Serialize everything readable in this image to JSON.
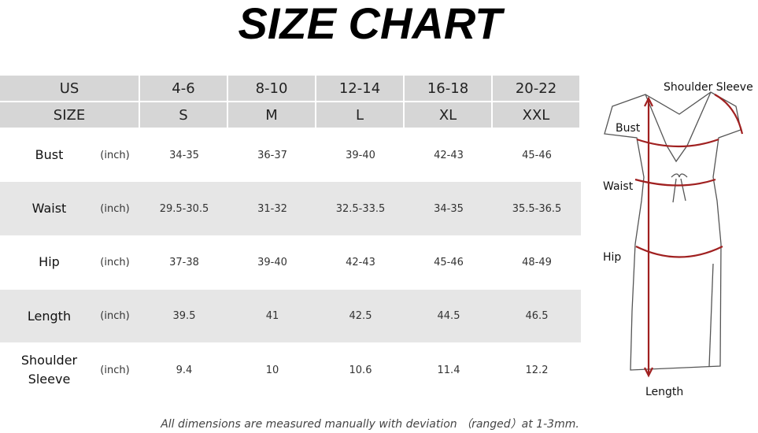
{
  "title": "SIZE CHART",
  "table": {
    "header_rows": [
      [
        "US",
        "4-6",
        "8-10",
        "12-14",
        "16-18",
        "20-22"
      ],
      [
        "SIZE",
        "S",
        "M",
        "L",
        "XL",
        "XXL"
      ]
    ],
    "rows": [
      {
        "name": "Bust",
        "unit": "(inch)",
        "values": [
          "34-35",
          "36-37",
          "39-40",
          "42-43",
          "45-46"
        ]
      },
      {
        "name": "Waist",
        "unit": "(inch)",
        "values": [
          "29.5-30.5",
          "31-32",
          "32.5-33.5",
          "34-35",
          "35.5-36.5"
        ]
      },
      {
        "name": "Hip",
        "unit": "(inch)",
        "values": [
          "37-38",
          "39-40",
          "42-43",
          "45-46",
          "48-49"
        ]
      },
      {
        "name": "Length",
        "unit": "(inch)",
        "values": [
          "39.5",
          "41",
          "42.5",
          "44.5",
          "46.5"
        ]
      },
      {
        "name": "Shoulder Sleeve",
        "unit": "(inch)",
        "values": [
          "9.4",
          "10",
          "10.6",
          "11.4",
          "12.2"
        ]
      }
    ]
  },
  "diagram": {
    "shoulder_sleeve": "Shoulder Sleeve",
    "bust": "Bust",
    "waist": "Waist",
    "hip": "Hip",
    "length": "Length"
  },
  "footnote": "All dimensions are measured manually with deviation （ranged）at 1-3mm."
}
